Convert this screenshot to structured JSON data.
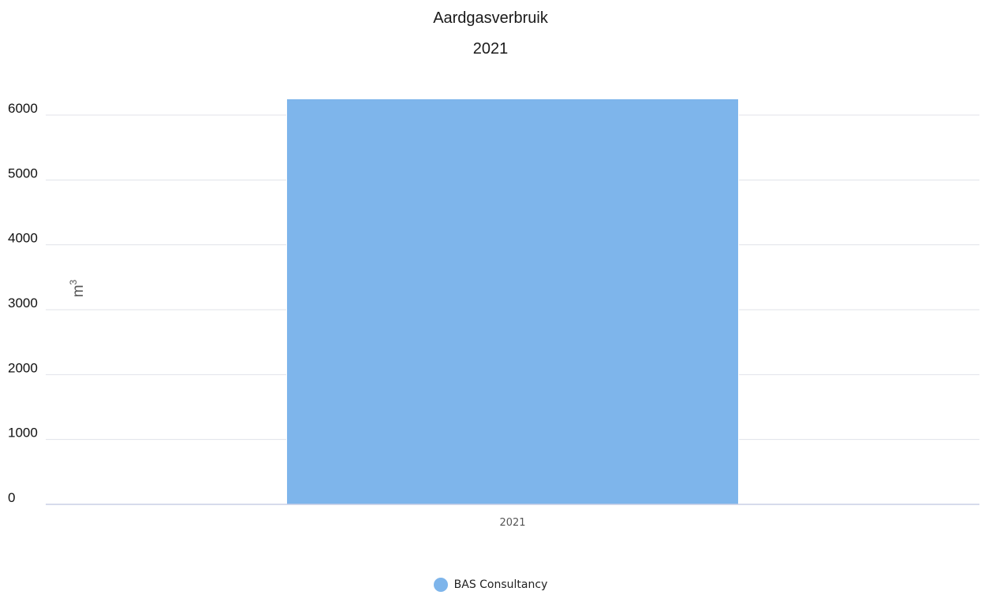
{
  "chart_data": {
    "type": "bar",
    "title": "Aardgasverbruik",
    "subtitle": "2021",
    "categories": [
      "2021"
    ],
    "series": [
      {
        "name": "BAS Consultancy",
        "values": [
          6250
        ],
        "color": "#7eb5eb"
      }
    ],
    "xlabel": "",
    "ylabel": "m",
    "ylabel_superscript": "3",
    "ylim": [
      0,
      6000
    ],
    "yticks": [
      "0",
      "1000",
      "2000",
      "3000",
      "4000",
      "5000",
      "6000"
    ],
    "grid": true,
    "gridline_color": "#e0e3ea",
    "axis_line_color": "#c9cfe6",
    "legend_position": "bottom-center"
  }
}
